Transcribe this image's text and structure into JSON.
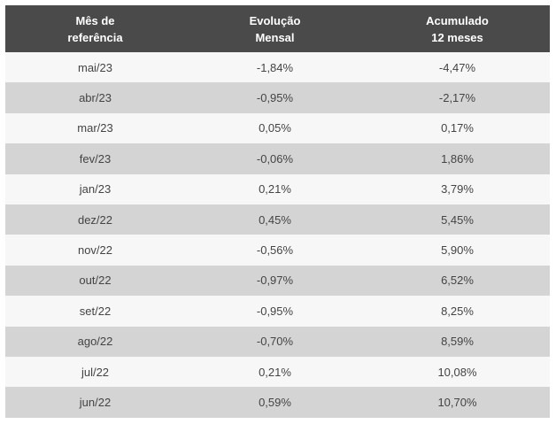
{
  "table": {
    "headers": [
      [
        "Mês de",
        "referência"
      ],
      [
        "Evolução",
        "Mensal"
      ],
      [
        "Acumulado",
        "12 meses"
      ]
    ],
    "rows": [
      [
        "mai/23",
        "-1,84%",
        "-4,47%"
      ],
      [
        "abr/23",
        "-0,95%",
        "-2,17%"
      ],
      [
        "mar/23",
        "0,05%",
        "0,17%"
      ],
      [
        "fev/23",
        "-0,06%",
        "1,86%"
      ],
      [
        "jan/23",
        "0,21%",
        "3,79%"
      ],
      [
        "dez/22",
        "0,45%",
        "5,45%"
      ],
      [
        "nov/22",
        "-0,56%",
        "5,90%"
      ],
      [
        "out/22",
        "-0,97%",
        "6,52%"
      ],
      [
        "set/22",
        "-0,95%",
        "8,25%"
      ],
      [
        "ago/22",
        "-0,70%",
        "8,59%"
      ],
      [
        "jul/22",
        "0,21%",
        "10,08%"
      ],
      [
        "jun/22",
        "0,59%",
        "10,70%"
      ]
    ]
  },
  "colors": {
    "header_background": "#4a4a4a",
    "header_text": "#ffffff",
    "row_light": "#f7f7f7",
    "row_dark": "#d4d4d4",
    "cell_text": "#444444"
  }
}
